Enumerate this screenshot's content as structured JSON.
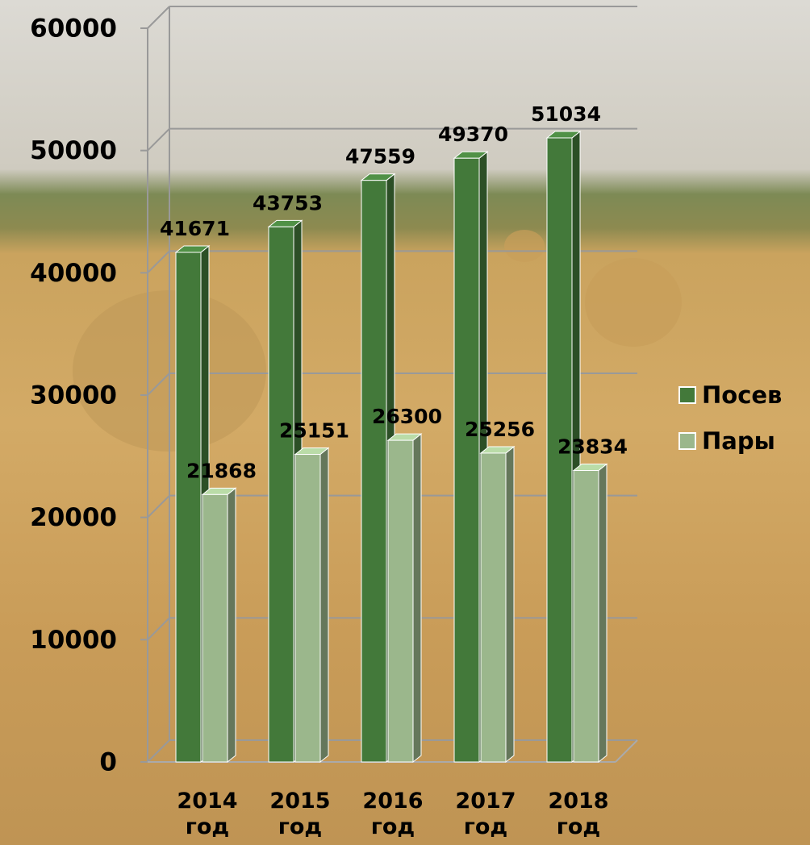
{
  "chart_data": {
    "type": "bar3d",
    "categories": [
      "2014 год",
      "2015 год",
      "2016 год",
      "2017 год",
      "2018 год"
    ],
    "series": [
      {
        "name": "Посев",
        "color": "#43793a",
        "values": [
          41671,
          43753,
          47559,
          49370,
          51034
        ]
      },
      {
        "name": "Пары",
        "color": "#9bb78c",
        "values": [
          21868,
          25151,
          26300,
          25256,
          23834
        ]
      }
    ],
    "ylim": [
      0,
      60000
    ],
    "yticks": [
      0,
      10000,
      20000,
      30000,
      40000,
      50000,
      60000
    ],
    "grid": true,
    "legend": "right"
  }
}
